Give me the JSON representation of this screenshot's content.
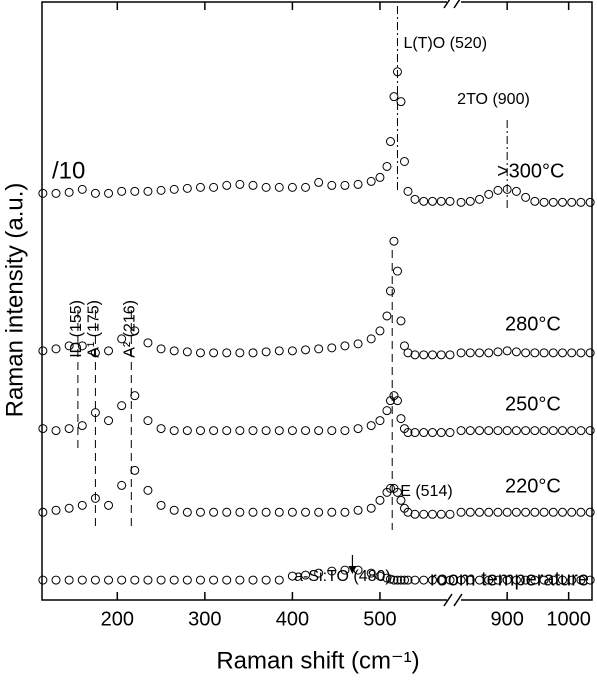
{
  "chart_data": {
    "type": "scatter",
    "xlabel": "Raman shift (cm⁻¹)",
    "ylabel": "Raman intensity (a.u.)",
    "xlim_segments": [
      [
        114,
        580
      ],
      [
        820,
        1038
      ]
    ],
    "ylim": [
      0,
      600
    ],
    "xticks": [
      200,
      300,
      400,
      500,
      900,
      1000
    ],
    "scale_note": "/10",
    "x": [
      115,
      130,
      145,
      160,
      175,
      190,
      205,
      220,
      235,
      250,
      265,
      280,
      295,
      310,
      325,
      340,
      355,
      370,
      385,
      400,
      415,
      430,
      445,
      460,
      475,
      490,
      500,
      508,
      512,
      516,
      520,
      524,
      528,
      532,
      540,
      550,
      560,
      570,
      580,
      825,
      840,
      855,
      870,
      885,
      900,
      915,
      930,
      945,
      960,
      975,
      990,
      1005,
      1020,
      1035
    ],
    "series": [
      {
        "name": ">300°C",
        "color": "#000000",
        "values": [
          408,
          408,
          409,
          412,
          408,
          408,
          410,
          410,
          410,
          411,
          412,
          413,
          414,
          414,
          416,
          417,
          416,
          414,
          414,
          414,
          414,
          419,
          416,
          416,
          417,
          420,
          424,
          435,
          460,
          505,
          530,
          500,
          440,
          410,
          402,
          400,
          400,
          400,
          400,
          399,
          400,
          402,
          407,
          411,
          412,
          410,
          404,
          400,
          399,
          399,
          399,
          399,
          399,
          399
        ]
      },
      {
        "name": "280°C",
        "color": "#000000",
        "values": [
          250,
          252,
          255,
          255,
          248,
          250,
          262,
          270,
          258,
          252,
          250,
          249,
          248,
          248,
          248,
          248,
          248,
          249,
          250,
          250,
          251,
          252,
          253,
          255,
          257,
          262,
          270,
          285,
          310,
          360,
          330,
          280,
          255,
          248,
          246,
          246,
          246,
          246,
          246,
          248,
          248,
          248,
          248,
          249,
          250,
          249,
          248,
          248,
          248,
          248,
          248,
          248,
          248,
          248
        ]
      },
      {
        "name": "250°C",
        "color": "#000000",
        "values": [
          172,
          170,
          172,
          175,
          188,
          180,
          195,
          205,
          180,
          172,
          170,
          170,
          170,
          170,
          170,
          170,
          170,
          170,
          170,
          170,
          170,
          170,
          170,
          170,
          172,
          175,
          180,
          190,
          200,
          205,
          200,
          182,
          172,
          168,
          168,
          168,
          168,
          168,
          168,
          170,
          170,
          170,
          170,
          170,
          170,
          170,
          170,
          170,
          170,
          170,
          170,
          170,
          170,
          170
        ]
      },
      {
        "name": "220°C",
        "color": "#000000",
        "values": [
          88,
          90,
          92,
          95,
          102,
          95,
          115,
          130,
          110,
          95,
          90,
          88,
          88,
          88,
          88,
          88,
          88,
          88,
          88,
          88,
          88,
          88,
          88,
          88,
          90,
          92,
          100,
          108,
          112,
          112,
          108,
          100,
          92,
          88,
          86,
          86,
          86,
          86,
          86,
          88,
          88,
          88,
          88,
          88,
          88,
          88,
          88,
          88,
          88,
          88,
          88,
          88,
          88,
          88
        ]
      },
      {
        "name": "room temperature",
        "color": "#000000",
        "values": [
          20,
          20,
          20,
          20,
          20,
          20,
          20,
          20,
          20,
          20,
          20,
          20,
          20,
          20,
          20,
          20,
          20,
          20,
          20,
          24,
          25,
          27,
          29,
          30,
          30,
          27,
          24,
          22,
          21,
          20,
          20,
          20,
          20,
          20,
          20,
          20,
          20,
          20,
          20,
          20,
          20,
          20,
          20,
          20,
          20,
          20,
          20,
          20,
          20,
          20,
          20,
          20,
          20,
          20
        ]
      }
    ],
    "annotations": [
      {
        "label": "L(T)O (520)",
        "x": 520
      },
      {
        "label": "2TO (900)",
        "x": 900
      },
      {
        "label": "ID (155)",
        "x": 155
      },
      {
        "label": "A¹ (175)",
        "x": 175
      },
      {
        "label": "A² (216)",
        "x": 216
      },
      {
        "label": "E (514)",
        "x": 514
      },
      {
        "label": "a-Si:TO (480)",
        "x": 480
      }
    ]
  }
}
